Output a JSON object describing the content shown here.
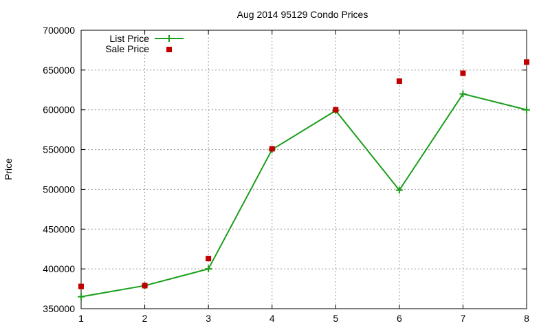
{
  "chart_data": {
    "type": "line",
    "title": "Aug 2014 95129 Condo Prices",
    "xlabel": "",
    "ylabel": "Price",
    "x": [
      1,
      2,
      3,
      4,
      5,
      6,
      7,
      8
    ],
    "xlim": [
      1,
      8
    ],
    "ylim": [
      350000,
      700000
    ],
    "x_ticks": [
      1,
      2,
      3,
      4,
      5,
      6,
      7,
      8
    ],
    "y_ticks": [
      350000,
      400000,
      450000,
      500000,
      550000,
      600000,
      650000,
      700000
    ],
    "grid": true,
    "legend_position": "top-left",
    "series": [
      {
        "name": "List Price",
        "style": "line-with-plus-markers",
        "color": "#1a9e1a",
        "values": [
          365000,
          379000,
          400000,
          550000,
          599000,
          499000,
          620000,
          600000
        ]
      },
      {
        "name": "Sale Price",
        "style": "square-markers",
        "color": "#c00000",
        "values": [
          378000,
          379000,
          413000,
          551000,
          600000,
          636000,
          646000,
          660000
        ]
      }
    ]
  }
}
